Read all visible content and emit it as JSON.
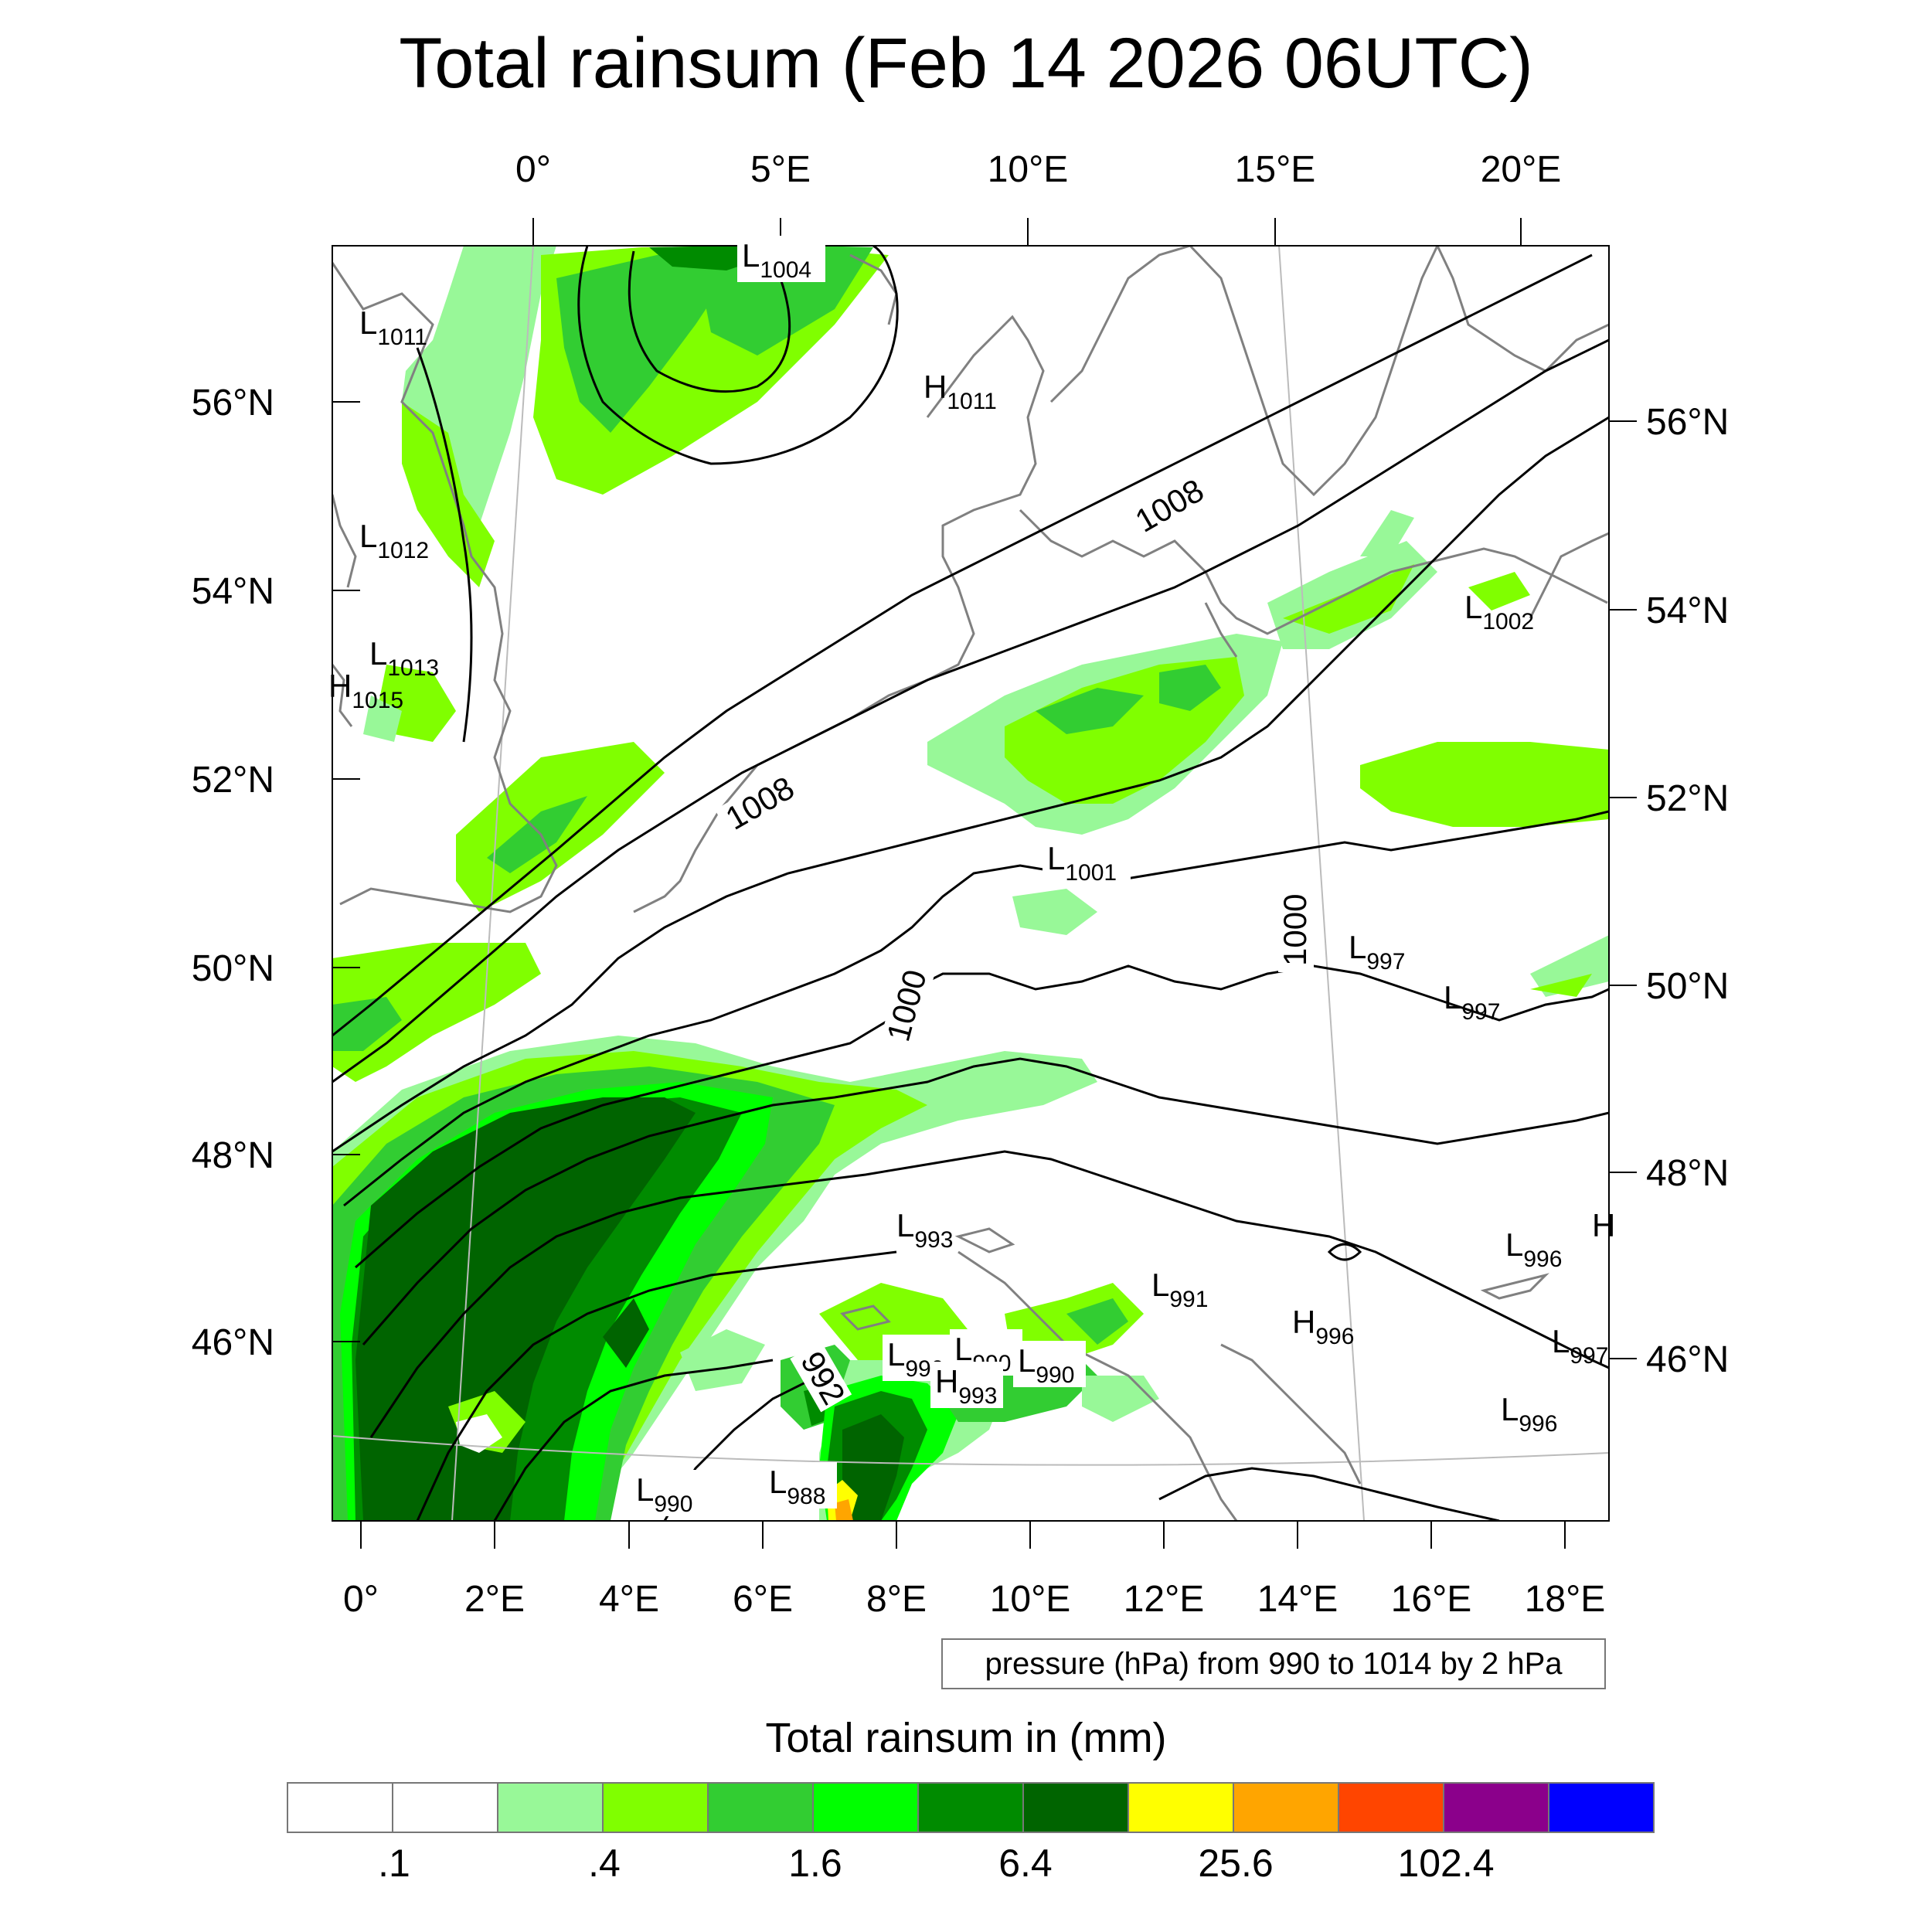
{
  "title": "Total rainsum (Feb 14 2026 06UTC)",
  "top_lon_ticks": [
    "0°",
    "5°E",
    "10°E",
    "15°E",
    "20°E"
  ],
  "right_lat_ticks": [
    "56°N",
    "54°N",
    "52°N",
    "50°N",
    "48°N",
    "46°N"
  ],
  "left_lat_ticks": [
    "56°N",
    "54°N",
    "52°N",
    "50°N",
    "48°N",
    "46°N"
  ],
  "bottom_lon_ticks": [
    "0°",
    "2°E",
    "4°E",
    "6°E",
    "8°E",
    "10°E",
    "12°E",
    "14°E",
    "16°E",
    "18°E"
  ],
  "pressure_note": "pressure (hPa) from 990 to 1014 by 2 hPa",
  "isobar_labels": [
    "1008",
    "1008",
    "1000",
    "1000",
    "992"
  ],
  "pressure_centers": [
    {
      "type": "L",
      "value": "1004"
    },
    {
      "type": "L",
      "value": "1011"
    },
    {
      "type": "H",
      "value": "1011"
    },
    {
      "type": "L",
      "value": "1012"
    },
    {
      "type": "L",
      "value": "1013"
    },
    {
      "type": "H",
      "value": "1015"
    },
    {
      "type": "L",
      "value": "1002"
    },
    {
      "type": "L",
      "value": "1001"
    },
    {
      "type": "L",
      "value": "997"
    },
    {
      "type": "L",
      "value": "997"
    },
    {
      "type": "L",
      "value": "993"
    },
    {
      "type": "L",
      "value": "991"
    },
    {
      "type": "L",
      "value": "996"
    },
    {
      "type": "H",
      "value": "996"
    },
    {
      "type": "L",
      "value": "997"
    },
    {
      "type": "L",
      "value": "996"
    },
    {
      "type": "L",
      "value": "990"
    },
    {
      "type": "L",
      "value": "990"
    },
    {
      "type": "L",
      "value": "990"
    },
    {
      "type": "H",
      "value": "993"
    },
    {
      "type": "L",
      "value": "990"
    },
    {
      "type": "L",
      "value": "988"
    },
    {
      "type": "H",
      "value": ""
    }
  ],
  "colorbar": {
    "title": "Total rainsum in (mm)",
    "colors": [
      "#ffffff",
      "#ffffff",
      "#98f898",
      "#80ff00",
      "#32cd32",
      "#00ff00",
      "#008b00",
      "#006400",
      "#ffff00",
      "#ffa500",
      "#ff4500",
      "#8b008b",
      "#0000ff"
    ],
    "labels": [
      ".1",
      ".4",
      "1.6",
      "6.4",
      "25.6",
      "102.4"
    ]
  },
  "colors": {
    "land": "#808080",
    "isobar": "#000000",
    "graticule": "#bbbbbb"
  }
}
